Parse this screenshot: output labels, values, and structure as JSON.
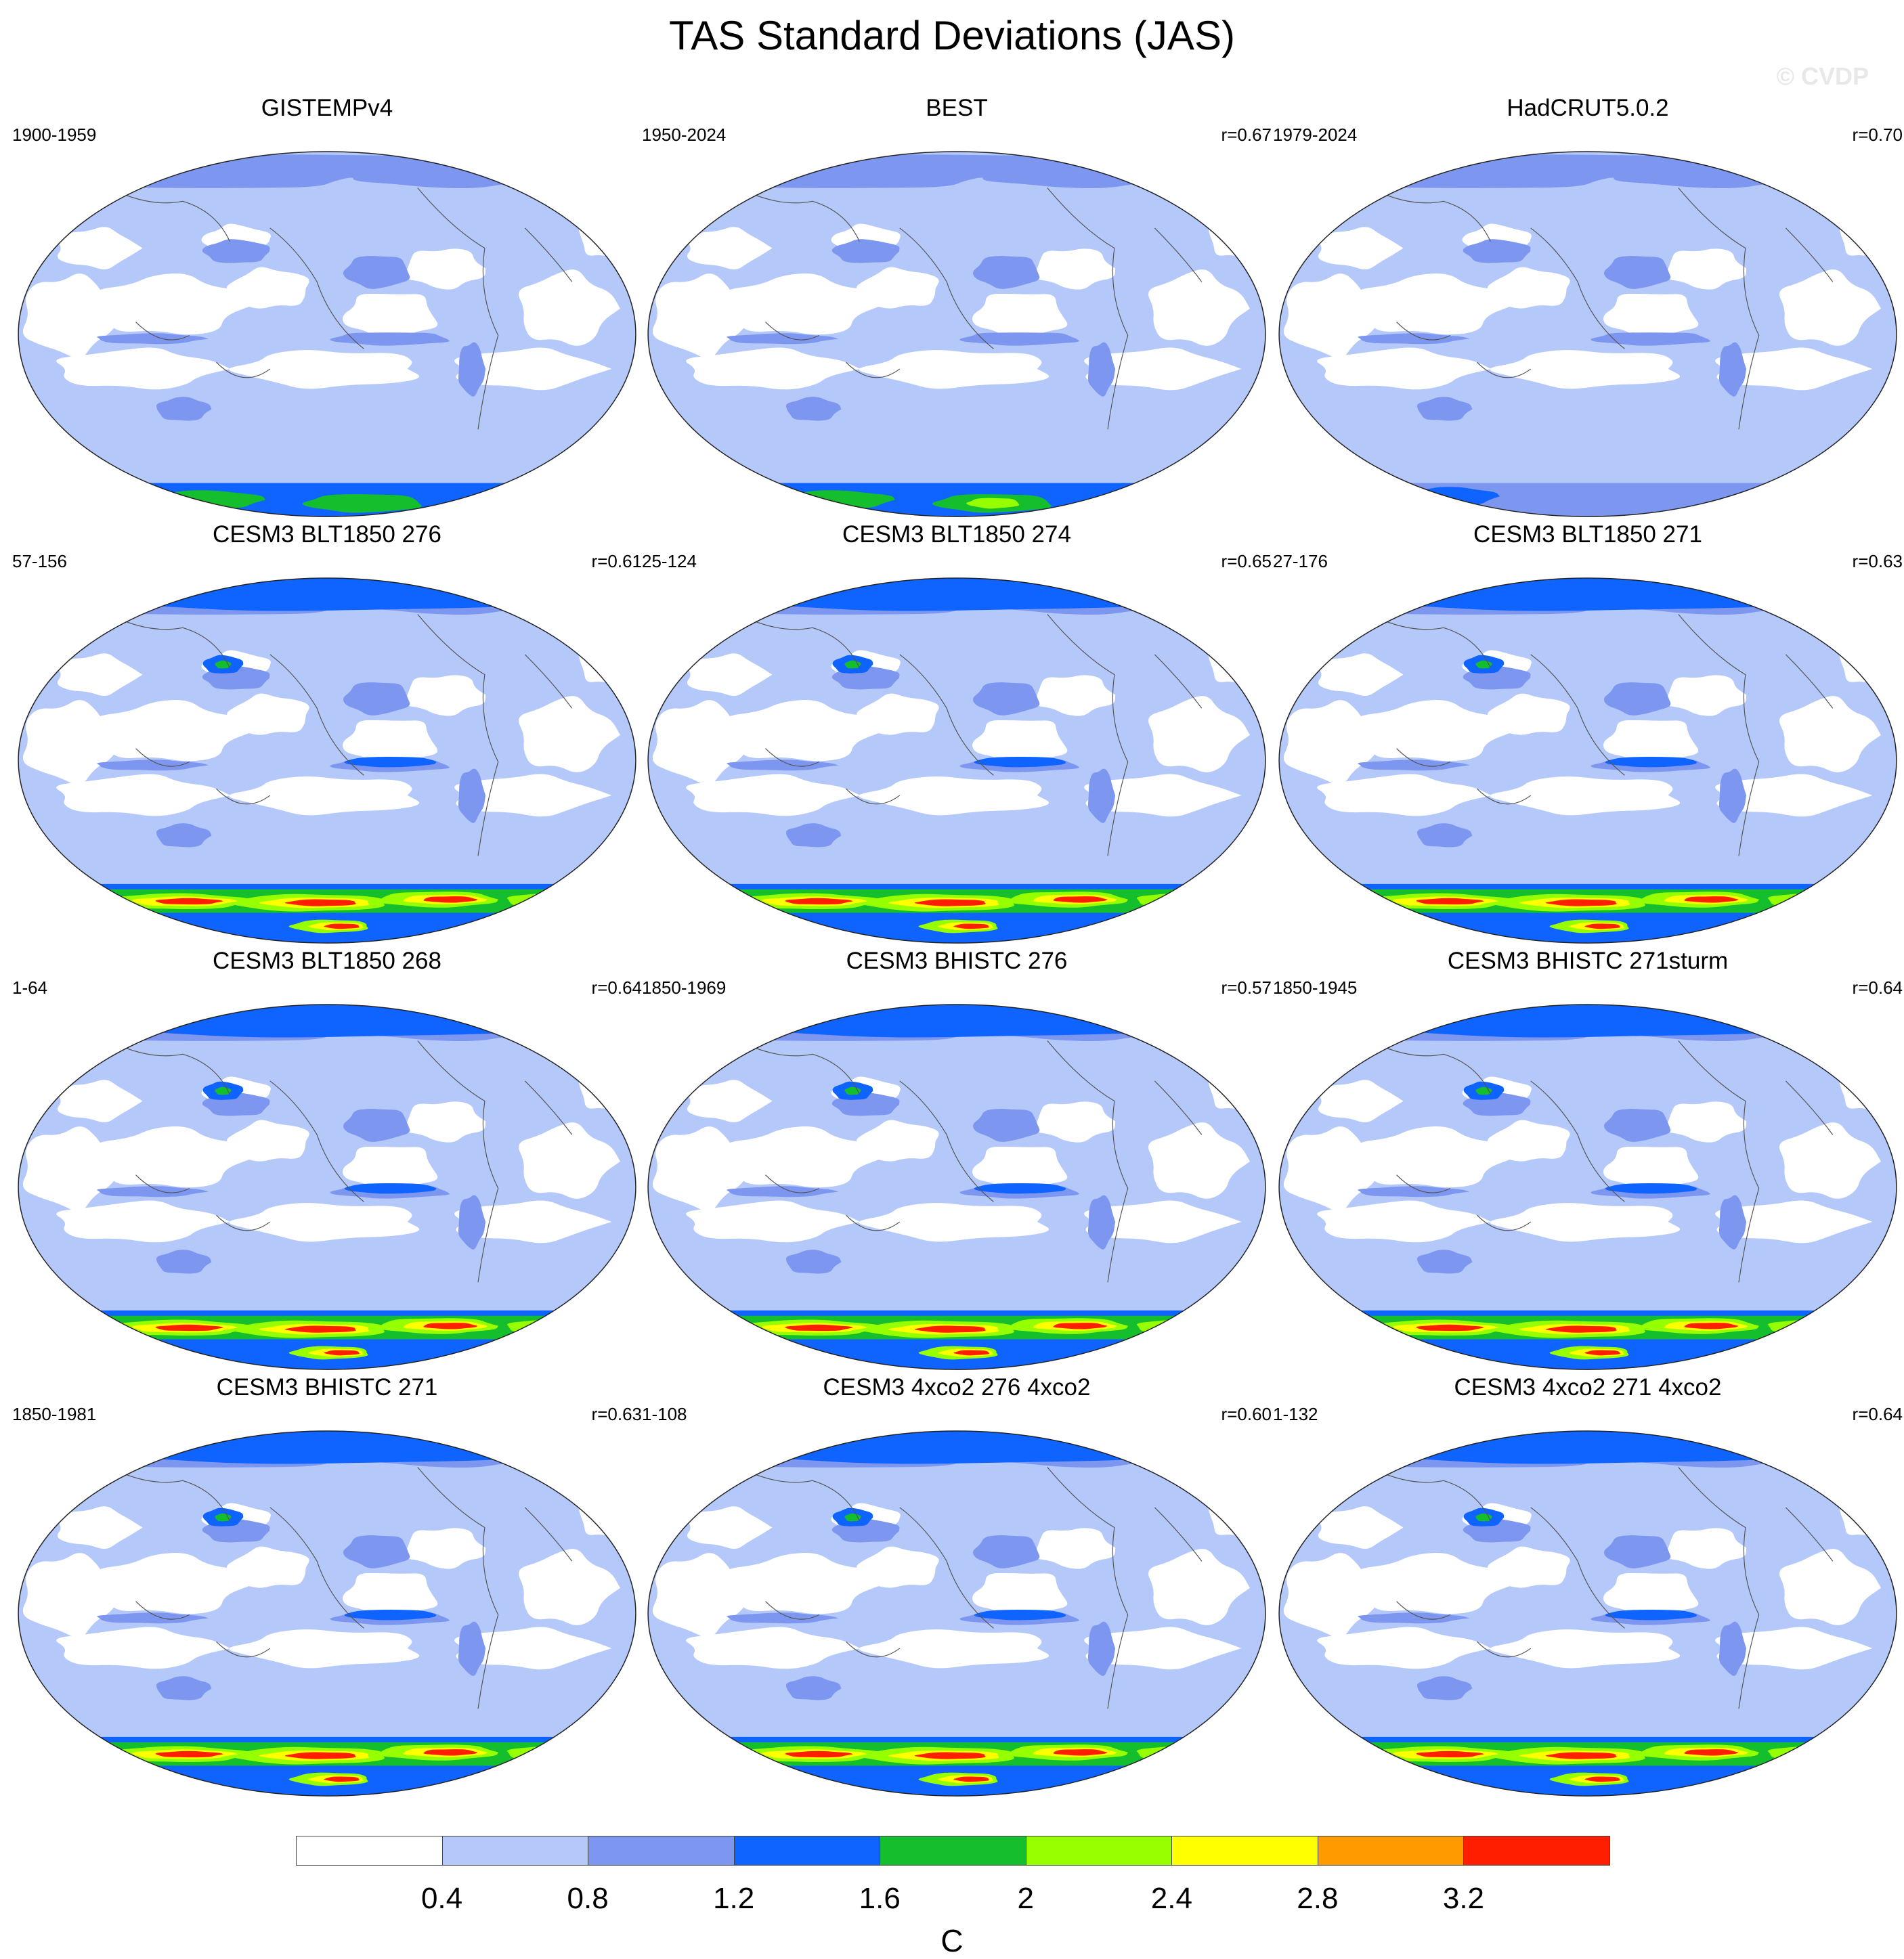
{
  "title": "TAS Standard Deviations (JAS)",
  "watermark": "© CVDP",
  "colorbar": {
    "colors": [
      "#ffffff",
      "#b4c8fa",
      "#7d96f0",
      "#0f64ff",
      "#14be2d",
      "#96ff00",
      "#ffff00",
      "#ff9b00",
      "#ff1e00"
    ],
    "labels": [
      "0.4",
      "0.8",
      "1.2",
      "1.6",
      "2",
      "2.4",
      "2.8",
      "3.2"
    ],
    "unit": "C"
  },
  "panels": [
    {
      "title": "GISTEMPv4",
      "period": "1900-1959",
      "r": "",
      "style": "obs",
      "sh_intensity": 2
    },
    {
      "title": "BEST",
      "period": "1950-2024",
      "r": "r=0.67",
      "style": "obs",
      "sh_intensity": 3
    },
    {
      "title": "HadCRUT5.0.2",
      "period": "1979-2024",
      "r": "r=0.70",
      "style": "obs",
      "sh_intensity": 1
    },
    {
      "title": "CESM3 BLT1850 276",
      "period": "57-156",
      "r": "r=0.61",
      "style": "model",
      "sh_intensity": 8
    },
    {
      "title": "CESM3 BLT1850 274",
      "period": "25-124",
      "r": "r=0.65",
      "style": "model",
      "sh_intensity": 8
    },
    {
      "title": "CESM3 BLT1850 271",
      "period": "27-176",
      "r": "r=0.63",
      "style": "model",
      "sh_intensity": 8
    },
    {
      "title": "CESM3 BLT1850 268",
      "period": "1-64",
      "r": "r=0.64",
      "style": "model",
      "sh_intensity": 8
    },
    {
      "title": "CESM3 BHISTC 276",
      "period": "1850-1969",
      "r": "r=0.57",
      "style": "model",
      "sh_intensity": 8
    },
    {
      "title": "CESM3 BHISTC 271sturm",
      "period": "1850-1945",
      "r": "r=0.64",
      "style": "model",
      "sh_intensity": 8
    },
    {
      "title": "CESM3 BHISTC 271",
      "period": "1850-1981",
      "r": "r=0.63",
      "style": "model",
      "sh_intensity": 8
    },
    {
      "title": "CESM3 4xco2 276 4xco2",
      "period": "1-108",
      "r": "r=0.60",
      "style": "model",
      "sh_intensity": 8
    },
    {
      "title": "CESM3 4xco2 271 4xco2",
      "period": "1-132",
      "r": "r=0.64",
      "style": "model",
      "sh_intensity": 8
    }
  ]
}
